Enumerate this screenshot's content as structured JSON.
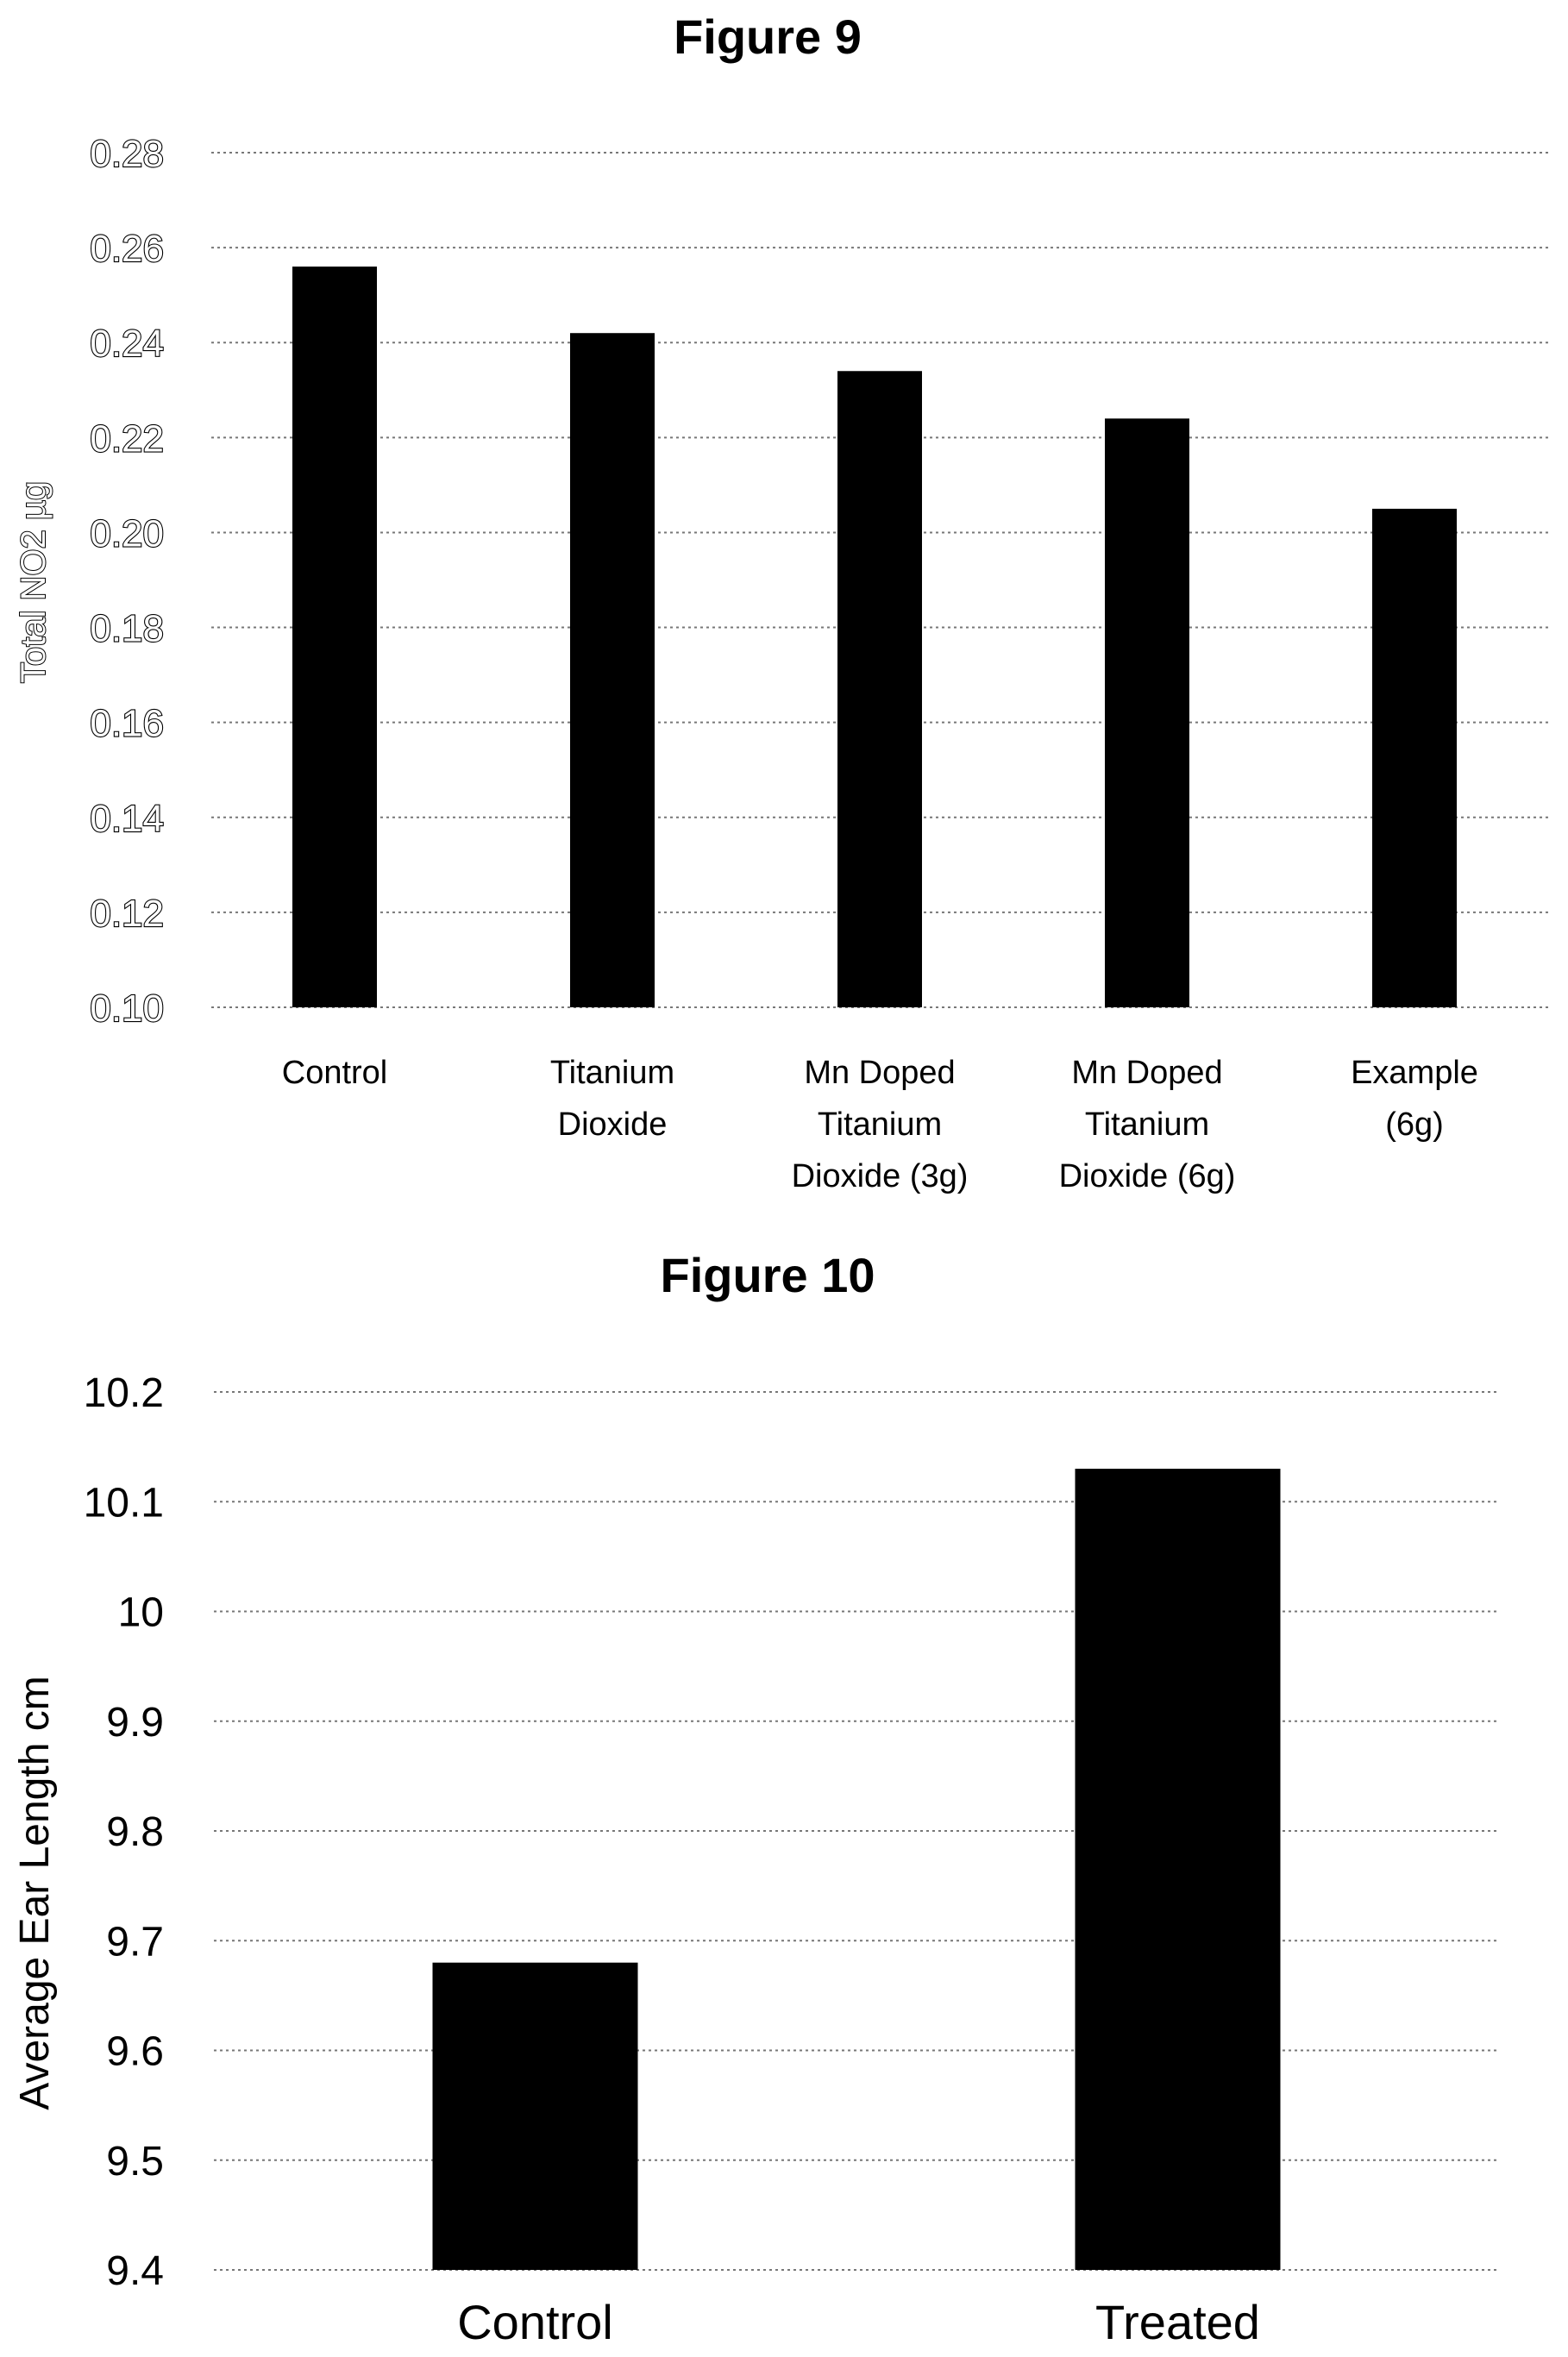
{
  "chart_data": [
    {
      "type": "bar",
      "title": "Figure 9",
      "ylabel": "Total NO2 µg",
      "xlabel": "",
      "categories": [
        "Control",
        "Titanium Dioxide",
        "Mn Doped Titanium Dioxide (3g)",
        "Mn Doped Titanium Dioxide (6g)",
        "Example (6g)"
      ],
      "category_lines": [
        [
          "Control"
        ],
        [
          "Titanium",
          "Dioxide"
        ],
        [
          "Mn Doped",
          "Titanium",
          "Dioxide (3g)"
        ],
        [
          "Mn Doped",
          "Titanium",
          "Dioxide (6g)"
        ],
        [
          "Example",
          "(6g)"
        ]
      ],
      "values": [
        0.256,
        0.242,
        0.234,
        0.224,
        0.205
      ],
      "ylim": [
        0.1,
        0.28
      ],
      "yticks": [
        "0.10",
        "0.12",
        "0.14",
        "0.16",
        "0.18",
        "0.20",
        "0.22",
        "0.24",
        "0.26",
        "0.28"
      ],
      "grid": true,
      "bar_color": "#000000"
    },
    {
      "type": "bar",
      "title": "Figure 10",
      "ylabel": "Average Ear Length cm",
      "xlabel": "",
      "categories": [
        "Control",
        "Treated"
      ],
      "values": [
        9.68,
        10.13
      ],
      "ylim": [
        9.4,
        10.2
      ],
      "yticks": [
        "9.4",
        "9.5",
        "9.6",
        "9.7",
        "9.8",
        "9.9",
        "10",
        "10.1",
        "10.2"
      ],
      "grid": true,
      "bar_color": "#000000"
    }
  ]
}
